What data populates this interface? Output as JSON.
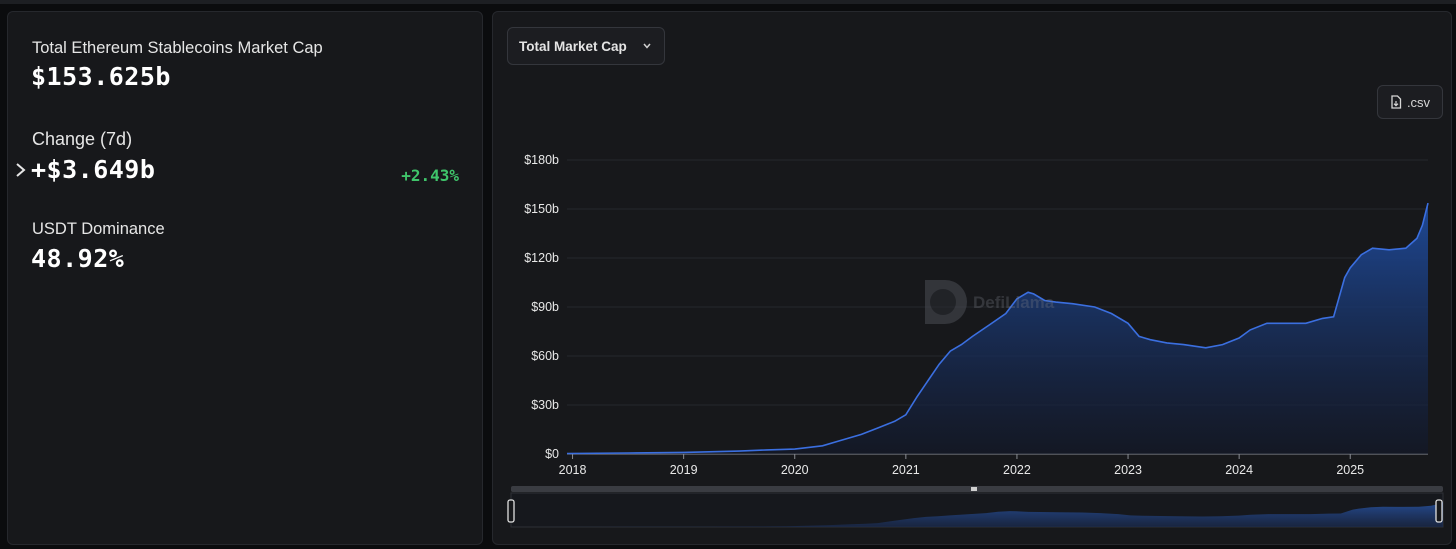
{
  "summary": {
    "market_cap_label": "Total Ethereum Stablecoins Market Cap",
    "market_cap_value": "$153.625b",
    "change_label": "Change (7d)",
    "change_value": "+$3.649b",
    "change_pct": "+2.43%",
    "dominance_label": "USDT Dominance",
    "dominance_value": "48.92%"
  },
  "controls": {
    "dropdown_label": "Total Market Cap",
    "csv_label": ".csv"
  },
  "watermark": "DefiLlama",
  "colors": {
    "accent_line": "#3b6fe0",
    "positive": "#3fc46a",
    "panel_bg": "#17181b"
  },
  "chart_data": {
    "type": "area",
    "title": "",
    "ylabel": "",
    "xlabel": "",
    "ylim": [
      0,
      180
    ],
    "y_ticks": [
      "$0",
      "$30b",
      "$60b",
      "$90b",
      "$120b",
      "$150b",
      "$180b"
    ],
    "y_tick_values": [
      0,
      30,
      60,
      90,
      120,
      150,
      180
    ],
    "x_ticks": [
      "2018",
      "2019",
      "2020",
      "2021",
      "2022",
      "2023",
      "2024",
      "2025"
    ],
    "x_tick_values": [
      2018,
      2019,
      2020,
      2021,
      2022,
      2023,
      2024,
      2025
    ],
    "xlim": [
      2017.95,
      2025.7
    ],
    "grid": true,
    "series": [
      {
        "x": [
          2017.95,
          2018.5,
          2019.0,
          2019.5,
          2019.75,
          2020.0,
          2020.25,
          2020.4,
          2020.6,
          2020.75,
          2020.9,
          2021.0,
          2021.1,
          2021.2,
          2021.3,
          2021.4,
          2021.5,
          2021.6,
          2021.75,
          2021.9,
          2022.0,
          2022.1,
          2022.15,
          2022.25,
          2022.35,
          2022.5,
          2022.7,
          2022.85,
          2023.0,
          2023.1,
          2023.2,
          2023.35,
          2023.5,
          2023.7,
          2023.85,
          2024.0,
          2024.1,
          2024.25,
          2024.4,
          2024.6,
          2024.75,
          2024.85,
          2024.95,
          2025.0,
          2025.1,
          2025.2,
          2025.35,
          2025.5,
          2025.6,
          2025.65,
          2025.7
        ],
        "values": [
          0.3,
          0.6,
          1.0,
          1.8,
          2.5,
          3.0,
          5.0,
          8.0,
          12.0,
          16.0,
          20.0,
          24.0,
          35.0,
          45.0,
          55.0,
          63.0,
          67.0,
          72.0,
          79.0,
          86.0,
          95.0,
          99.0,
          98.0,
          94.0,
          93.0,
          92.0,
          90.0,
          86.0,
          80.0,
          72.0,
          70.0,
          68.0,
          67.0,
          65.0,
          67.0,
          71.0,
          76.0,
          80.0,
          80.0,
          80.0,
          83.0,
          84.0,
          108.0,
          114.0,
          122.0,
          126.0,
          125.0,
          126.0,
          132.0,
          140.0,
          153.6
        ]
      }
    ]
  }
}
